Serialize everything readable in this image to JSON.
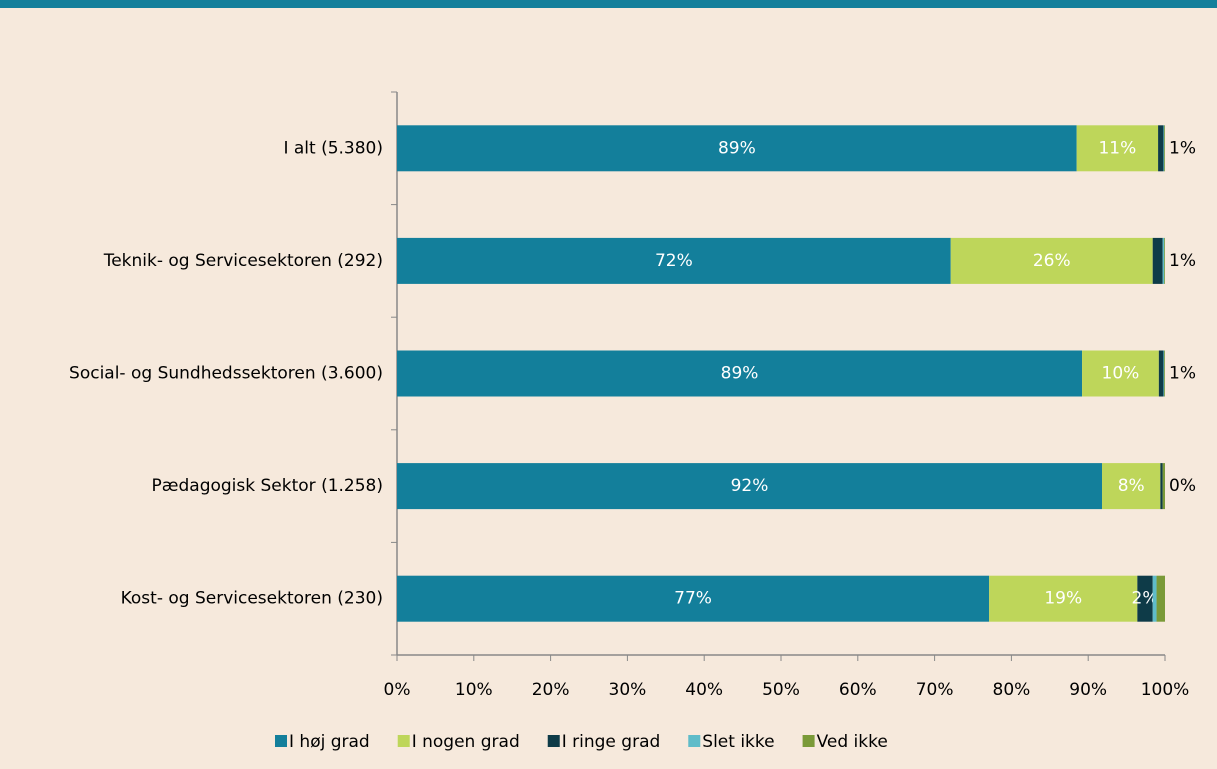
{
  "chart_data": {
    "type": "stacked_barh",
    "categories": [
      "I alt (5.380)",
      "Teknik- og Servicesektoren (292)",
      "Social- og Sundhedssektoren (3.600)",
      "Pædagogisk Sektor (1.258)",
      "Kost- og Servicesektoren (230)"
    ],
    "series": [
      {
        "name": "I høj grad",
        "color": "#137f9b",
        "values": [
          88.5,
          72.1,
          89.2,
          91.8,
          77.1
        ],
        "value_labels": [
          "89%",
          "72%",
          "89%",
          "92%",
          "77%"
        ]
      },
      {
        "name": "I nogen grad",
        "color": "#bed65a",
        "values": [
          10.6,
          26.3,
          10.0,
          7.6,
          19.3
        ],
        "value_labels": [
          "11%",
          "26%",
          "10%",
          "8%",
          "19%"
        ]
      },
      {
        "name": "I ringe grad",
        "color": "#0e3b48",
        "values": [
          0.7,
          1.3,
          0.6,
          0.3,
          2.0
        ],
        "value_labels": [
          "1%",
          "1%",
          "1%",
          "0%",
          "2%"
        ]
      },
      {
        "name": "Slet ikke",
        "color": "#5fbcc9",
        "values": [
          0.1,
          0.2,
          0.1,
          0,
          0.5
        ]
      },
      {
        "name": "Ved ikke",
        "color": "#7a9a38",
        "values": [
          0.1,
          0.1,
          0.1,
          0.3,
          1.1
        ]
      }
    ],
    "xlim": [
      0,
      100
    ],
    "xticks": [
      {
        "value": 0,
        "label": "0%"
      },
      {
        "value": 10,
        "label": "10%"
      },
      {
        "value": 20,
        "label": "20%"
      },
      {
        "value": 30,
        "label": "30%"
      },
      {
        "value": 40,
        "label": "40%"
      },
      {
        "value": 50,
        "label": "50%"
      },
      {
        "value": 60,
        "label": "60%"
      },
      {
        "value": 70,
        "label": "70%"
      },
      {
        "value": 80,
        "label": "80%"
      },
      {
        "value": 90,
        "label": "90%"
      },
      {
        "value": 100,
        "label": "100%"
      }
    ],
    "legend": "bottom"
  }
}
